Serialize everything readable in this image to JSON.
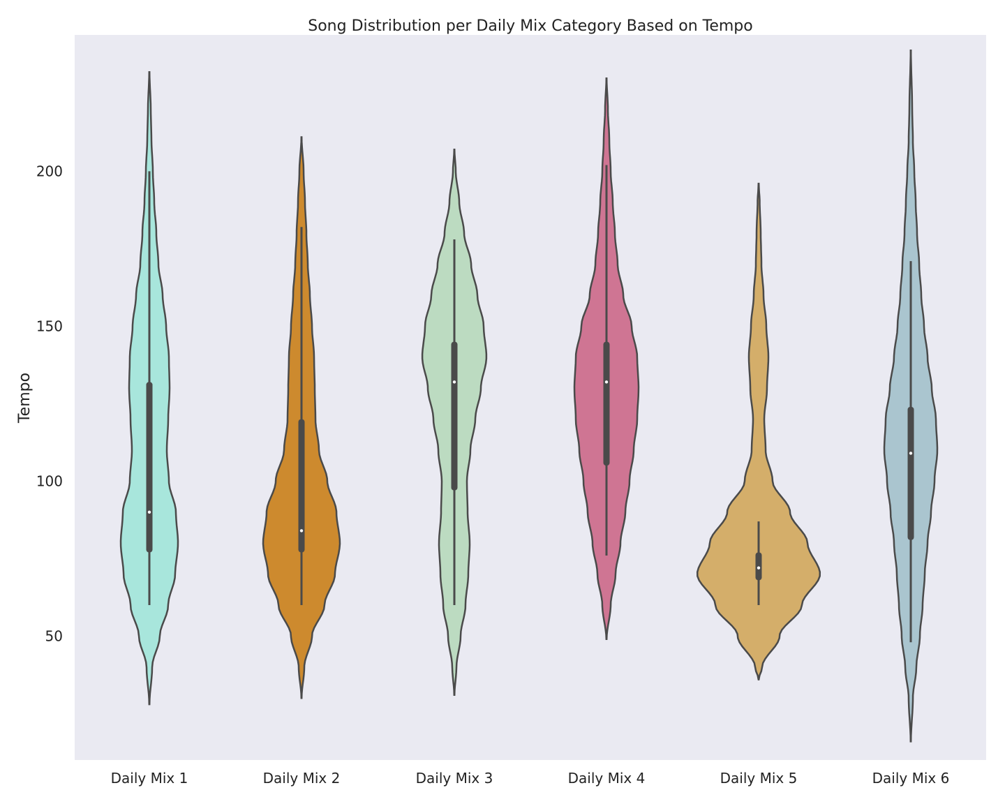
{
  "chart_data": {
    "type": "violin",
    "title": "Song Distribution per Daily Mix Category Based on Tempo",
    "xlabel": "",
    "ylabel": "Tempo",
    "ylim": [
      10,
      244
    ],
    "yticks": [
      50,
      100,
      150,
      200
    ],
    "grid": false,
    "legend": "none",
    "background": "#EAEAF2",
    "outline_color": "#4A4A4A",
    "categories": [
      "Daily Mix 1",
      "Daily Mix 2",
      "Daily Mix 3",
      "Daily Mix 4",
      "Daily Mix 5",
      "Daily Mix 6"
    ],
    "series": [
      {
        "category": "Daily Mix 1",
        "color": "#A8E6DC",
        "range": [
          28,
          232
        ],
        "whisker": [
          60,
          200
        ],
        "box": [
          77,
          132
        ],
        "median": 90,
        "profile": [
          [
            28,
            0.2
          ],
          [
            40,
            4
          ],
          [
            50,
            15
          ],
          [
            60,
            27
          ],
          [
            70,
            37
          ],
          [
            80,
            41
          ],
          [
            90,
            38
          ],
          [
            100,
            28
          ],
          [
            110,
            25
          ],
          [
            120,
            27
          ],
          [
            130,
            29
          ],
          [
            140,
            28
          ],
          [
            150,
            24
          ],
          [
            160,
            19
          ],
          [
            170,
            13
          ],
          [
            180,
            10
          ],
          [
            190,
            7
          ],
          [
            200,
            5
          ],
          [
            210,
            3
          ],
          [
            220,
            2
          ],
          [
            232,
            0.2
          ]
        ]
      },
      {
        "category": "Daily Mix 2",
        "color": "#CD8A2E",
        "range": [
          30,
          211
        ],
        "whisker": [
          60,
          182
        ],
        "box": [
          77,
          120
        ],
        "median": 84,
        "profile": [
          [
            30,
            0.2
          ],
          [
            40,
            4
          ],
          [
            50,
            15
          ],
          [
            60,
            33
          ],
          [
            70,
            48
          ],
          [
            80,
            55
          ],
          [
            90,
            50
          ],
          [
            100,
            37
          ],
          [
            110,
            25
          ],
          [
            120,
            20
          ],
          [
            130,
            19
          ],
          [
            140,
            18
          ],
          [
            150,
            15
          ],
          [
            160,
            12
          ],
          [
            170,
            9
          ],
          [
            180,
            7
          ],
          [
            190,
            5
          ],
          [
            200,
            3
          ],
          [
            211,
            0.2
          ]
        ]
      },
      {
        "category": "Daily Mix 3",
        "color": "#BCDBC1",
        "range": [
          31,
          207
        ],
        "whisker": [
          60,
          178
        ],
        "box": [
          97,
          145
        ],
        "median": 132,
        "profile": [
          [
            31,
            0.2
          ],
          [
            40,
            3
          ],
          [
            50,
            9
          ],
          [
            60,
            16
          ],
          [
            70,
            20
          ],
          [
            80,
            22
          ],
          [
            90,
            19
          ],
          [
            100,
            18
          ],
          [
            110,
            23
          ],
          [
            120,
            30
          ],
          [
            130,
            38
          ],
          [
            140,
            46
          ],
          [
            150,
            42
          ],
          [
            160,
            33
          ],
          [
            170,
            24
          ],
          [
            180,
            14
          ],
          [
            190,
            7
          ],
          [
            200,
            2
          ],
          [
            207,
            0.2
          ]
        ]
      },
      {
        "category": "Daily Mix 4",
        "color": "#CF7593",
        "range": [
          49,
          230
        ],
        "whisker": [
          76,
          202
        ],
        "box": [
          105,
          145
        ],
        "median": 132,
        "profile": [
          [
            49,
            0.2
          ],
          [
            60,
            6
          ],
          [
            70,
            13
          ],
          [
            80,
            20
          ],
          [
            90,
            27
          ],
          [
            100,
            33
          ],
          [
            110,
            39
          ],
          [
            120,
            44
          ],
          [
            130,
            46
          ],
          [
            140,
            44
          ],
          [
            150,
            36
          ],
          [
            160,
            24
          ],
          [
            170,
            16
          ],
          [
            180,
            12
          ],
          [
            190,
            9
          ],
          [
            200,
            6
          ],
          [
            210,
            4
          ],
          [
            220,
            2
          ],
          [
            230,
            0.2
          ]
        ]
      },
      {
        "category": "Daily Mix 5",
        "color": "#D4AE6A",
        "range": [
          36,
          196
        ],
        "whisker": [
          60,
          87
        ],
        "box": [
          68,
          77
        ],
        "median": 72,
        "profile": [
          [
            36,
            0.2
          ],
          [
            40,
            5
          ],
          [
            50,
            30
          ],
          [
            60,
            62
          ],
          [
            70,
            88
          ],
          [
            80,
            70
          ],
          [
            90,
            45
          ],
          [
            100,
            20
          ],
          [
            110,
            10
          ],
          [
            120,
            8
          ],
          [
            130,
            12
          ],
          [
            140,
            14
          ],
          [
            150,
            11
          ],
          [
            160,
            7
          ],
          [
            170,
            4
          ],
          [
            180,
            3
          ],
          [
            190,
            1.5
          ],
          [
            196,
            0.2
          ]
        ]
      },
      {
        "category": "Daily Mix 6",
        "color": "#AAC5CF",
        "range": [
          16,
          239
        ],
        "whisker": [
          48,
          171
        ],
        "box": [
          81,
          124
        ],
        "median": 109,
        "profile": [
          [
            16,
            0.2
          ],
          [
            30,
            3
          ],
          [
            40,
            8
          ],
          [
            50,
            13
          ],
          [
            60,
            17
          ],
          [
            70,
            20
          ],
          [
            80,
            24
          ],
          [
            90,
            29
          ],
          [
            100,
            34
          ],
          [
            110,
            38
          ],
          [
            120,
            36
          ],
          [
            130,
            30
          ],
          [
            140,
            24
          ],
          [
            150,
            19
          ],
          [
            160,
            15
          ],
          [
            170,
            12
          ],
          [
            180,
            9
          ],
          [
            190,
            7
          ],
          [
            200,
            5
          ],
          [
            210,
            3
          ],
          [
            220,
            2
          ],
          [
            239,
            0.2
          ]
        ]
      }
    ]
  }
}
